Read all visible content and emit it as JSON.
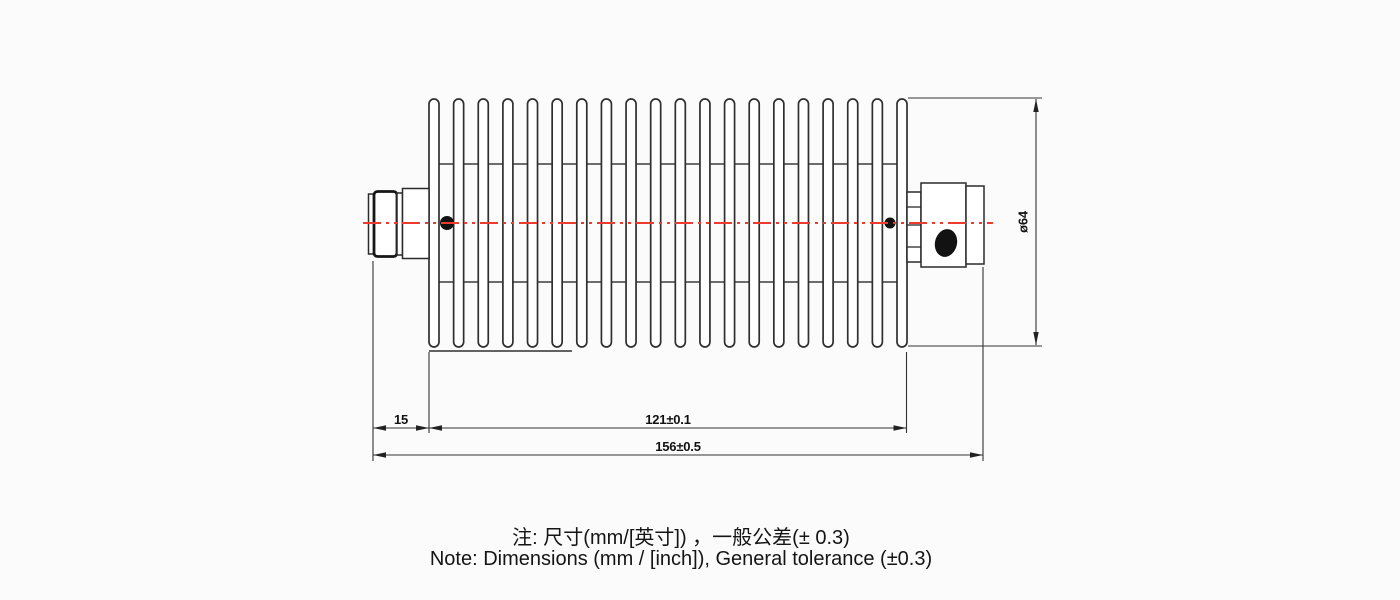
{
  "drawing": {
    "title": "rf-attenuator-outline-drawing",
    "dims": {
      "left_offset": "15",
      "fin_section": "121±0.1",
      "overall": "156±0.5",
      "diameter": "ø64"
    },
    "notes": {
      "zh": "注: 尺寸(mm/[英寸]) ，一般公差(± 0.3)",
      "en": "Note: Dimensions (mm / [inch]), General tolerance (±0.3)"
    },
    "colors": {
      "centerline_red": "#ee3b30",
      "line_dark": "#2b2b2b"
    }
  }
}
